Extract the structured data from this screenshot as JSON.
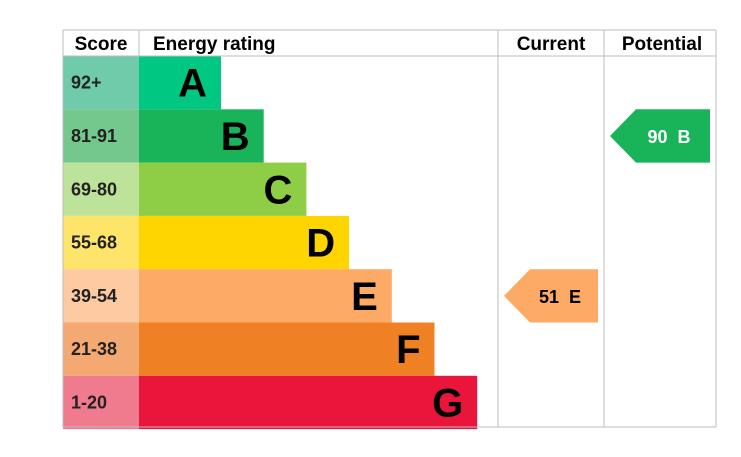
{
  "headers": {
    "score": "Score",
    "energy_rating": "Energy rating",
    "current": "Current",
    "potential": "Potential"
  },
  "chart_data": {
    "type": "bar",
    "bands": [
      {
        "band": "A",
        "range": "92+",
        "bar_color": "#00c781",
        "score_color": "#6fcba9"
      },
      {
        "band": "B",
        "range": "81-91",
        "bar_color": "#19b459",
        "score_color": "#74c78d"
      },
      {
        "band": "C",
        "range": "69-80",
        "bar_color": "#8dce46",
        "score_color": "#bde29a"
      },
      {
        "band": "D",
        "range": "55-68",
        "bar_color": "#ffd500",
        "score_color": "#ffe46a"
      },
      {
        "band": "E",
        "range": "39-54",
        "bar_color": "#fcaa65",
        "score_color": "#fdcaa2"
      },
      {
        "band": "F",
        "range": "21-38",
        "bar_color": "#ef8023",
        "score_color": "#f4a872"
      },
      {
        "band": "G",
        "range": "1-20",
        "bar_color": "#e9153b",
        "score_color": "#f07a8e"
      }
    ],
    "current": {
      "score": 51,
      "band": "E",
      "label": "51  E",
      "color": "#fcaa65",
      "text_color": "#000000"
    },
    "potential": {
      "score": 90,
      "band": "B",
      "label": "90  B",
      "color": "#19b459",
      "text_color": "#ffffff"
    }
  }
}
